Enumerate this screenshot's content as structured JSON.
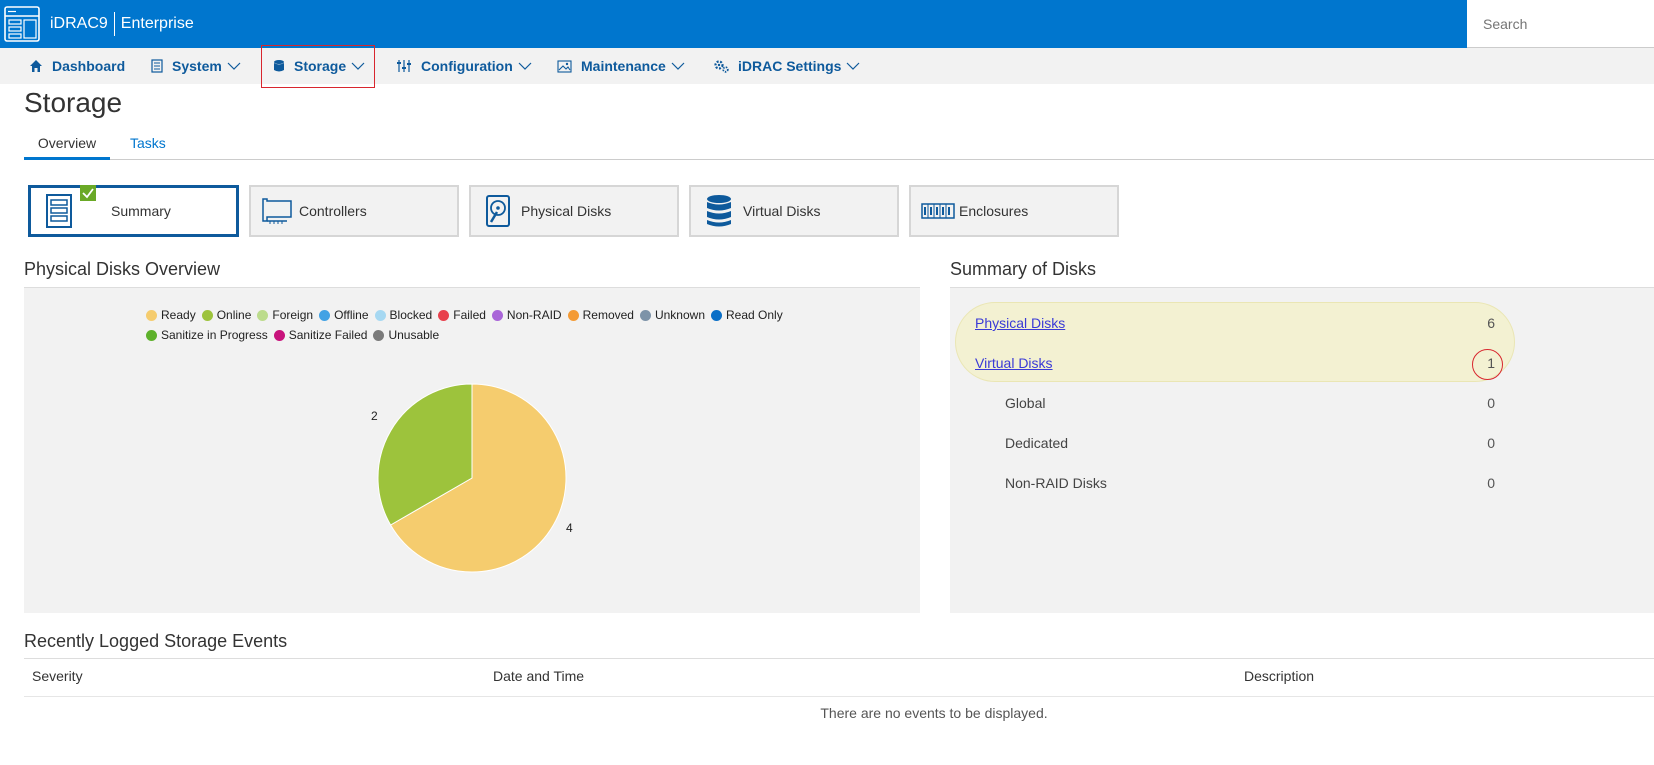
{
  "header": {
    "brand": "iDRAC9",
    "edition": "Enterprise",
    "search_placeholder": "Search"
  },
  "nav": [
    {
      "label": "Dashboard",
      "icon": "home-icon"
    },
    {
      "label": "System",
      "icon": "server-icon"
    },
    {
      "label": "Storage",
      "icon": "database-icon"
    },
    {
      "label": "Configuration",
      "icon": "sliders-icon"
    },
    {
      "label": "Maintenance",
      "icon": "image-icon"
    },
    {
      "label": "iDRAC Settings",
      "icon": "gears-icon"
    }
  ],
  "page": {
    "title": "Storage",
    "tabs": [
      "Overview",
      "Tasks"
    ],
    "active_tab": "Overview"
  },
  "cards": [
    {
      "label": "Summary",
      "icon": "summary-icon",
      "active": true
    },
    {
      "label": "Controllers",
      "icon": "controller-card-icon"
    },
    {
      "label": "Physical Disks",
      "icon": "physical-disk-icon"
    },
    {
      "label": "Virtual Disks",
      "icon": "virtual-disk-icon"
    },
    {
      "label": "Enclosures",
      "icon": "enclosure-icon"
    }
  ],
  "physical_overview": {
    "title": "Physical Disks Overview"
  },
  "chart_data": {
    "type": "pie",
    "legend": [
      {
        "name": "Ready",
        "color": "#f5cc6e"
      },
      {
        "name": "Online",
        "color": "#9dc33c"
      },
      {
        "name": "Foreign",
        "color": "#bcdc8c"
      },
      {
        "name": "Offline",
        "color": "#42a2e4"
      },
      {
        "name": "Blocked",
        "color": "#a6d8f2"
      },
      {
        "name": "Failed",
        "color": "#e8414d"
      },
      {
        "name": "Non-RAID",
        "color": "#a965d8"
      },
      {
        "name": "Removed",
        "color": "#f49b36"
      },
      {
        "name": "Unknown",
        "color": "#7d93a8"
      },
      {
        "name": "Read Only",
        "color": "#0a6fc7"
      },
      {
        "name": "Sanitize in Progress",
        "color": "#5eb12b"
      },
      {
        "name": "Sanitize Failed",
        "color": "#c8137c"
      },
      {
        "name": "Unusable",
        "color": "#7a7a7a"
      }
    ],
    "slices": [
      {
        "name": "Ready",
        "value": 4,
        "color": "#f5cc6e"
      },
      {
        "name": "Online",
        "value": 2,
        "color": "#9dc33c"
      }
    ]
  },
  "summary": {
    "title": "Summary of Disks",
    "rows": [
      {
        "label": "Physical Disks",
        "value": "6",
        "link": true
      },
      {
        "label": "Virtual Disks",
        "value": "1",
        "link": true
      },
      {
        "label": "Global",
        "value": "0"
      },
      {
        "label": "Dedicated",
        "value": "0"
      },
      {
        "label": "Non-RAID Disks",
        "value": "0"
      }
    ]
  },
  "events": {
    "title": "Recently Logged Storage Events",
    "columns": [
      "Severity",
      "Date and Time",
      "Description"
    ],
    "empty": "There are no events to be displayed."
  }
}
